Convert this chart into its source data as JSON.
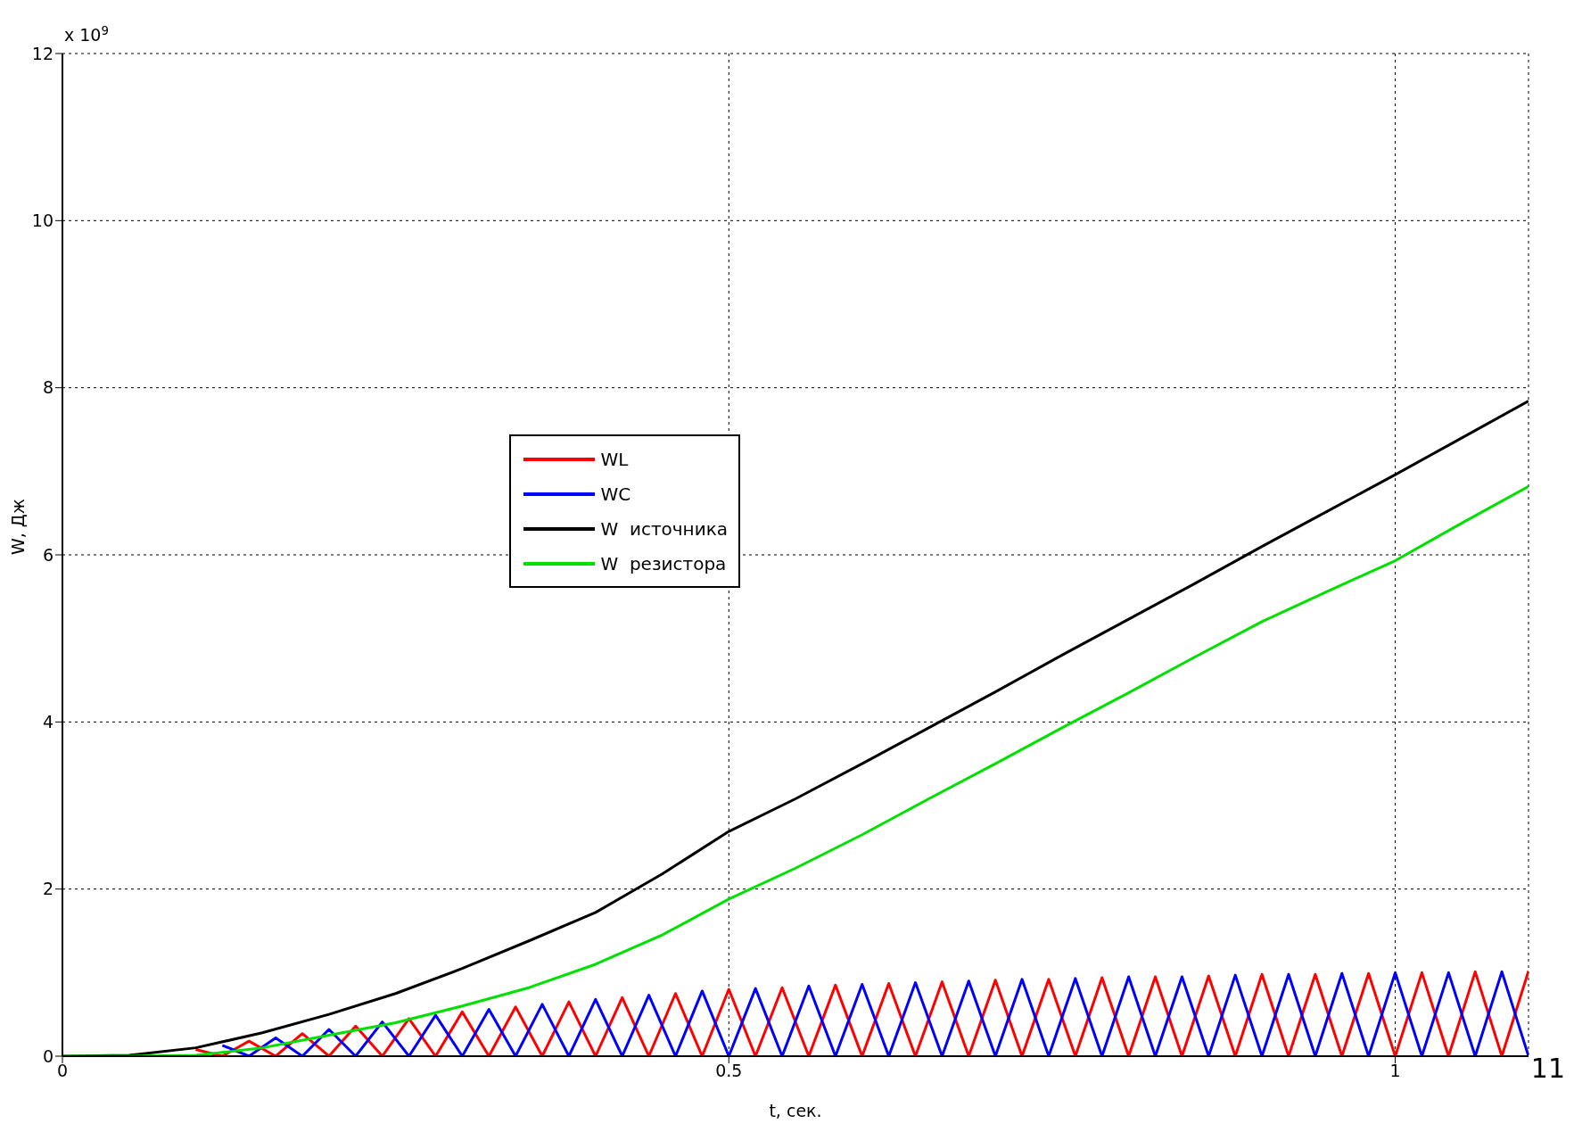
{
  "chart_data": {
    "type": "line",
    "xlabel": "t, сек.",
    "ylabel": "W, Дж",
    "annotations": [
      "x 10$^{9}$",
      "11"
    ],
    "xlim": [
      0,
      1.1
    ],
    "xticks": [
      0,
      0.5,
      1
    ],
    "ylim": [
      0,
      12
    ],
    "yticks": [
      0,
      2,
      4,
      6,
      8,
      10,
      12
    ],
    "grid": true,
    "legend": "left",
    "line_style": "solid",
    "marker": "none",
    "series": [
      {
        "name": "WL",
        "color": "#ff0000",
        "x": [
          0.1,
          0.12,
          0.14,
          0.16,
          0.18,
          0.2,
          0.22,
          0.24,
          0.26,
          0.28,
          0.3,
          0.32,
          0.34,
          0.36,
          0.38,
          0.4,
          0.42,
          0.44,
          0.46,
          0.48,
          0.5,
          0.52,
          0.54,
          0.56,
          0.58,
          0.6,
          0.62,
          0.64,
          0.66,
          0.68,
          0.7,
          0.72,
          0.74,
          0.76,
          0.78,
          0.8,
          0.82,
          0.84,
          0.86,
          0.88,
          0.9,
          0.92,
          0.94,
          0.96,
          0.98,
          1.0,
          1.02,
          1.04,
          1.06,
          1.08,
          1.1
        ],
        "values": [
          0.08,
          0,
          0.18,
          0,
          0.27,
          0,
          0.36,
          0,
          0.45,
          0,
          0.53,
          0,
          0.59,
          0,
          0.65,
          0,
          0.7,
          0,
          0.75,
          0,
          0.8,
          0,
          0.82,
          0,
          0.85,
          0,
          0.87,
          0,
          0.89,
          0,
          0.91,
          0,
          0.92,
          0,
          0.94,
          0,
          0.95,
          0,
          0.96,
          0,
          0.98,
          0,
          0.98,
          0,
          0.99,
          0,
          1.0,
          0,
          1.01,
          0,
          1.02
        ]
      },
      {
        "name": "WC",
        "color": "#0000ff",
        "x": [
          0.12,
          0.14,
          0.16,
          0.18,
          0.2,
          0.22,
          0.24,
          0.26,
          0.28,
          0.3,
          0.32,
          0.34,
          0.36,
          0.38,
          0.4,
          0.42,
          0.44,
          0.46,
          0.48,
          0.5,
          0.52,
          0.54,
          0.56,
          0.58,
          0.6,
          0.62,
          0.64,
          0.66,
          0.68,
          0.7,
          0.72,
          0.74,
          0.76,
          0.78,
          0.8,
          0.82,
          0.84,
          0.86,
          0.88,
          0.9,
          0.92,
          0.94,
          0.96,
          0.98,
          1.0,
          1.02,
          1.04,
          1.06,
          1.08,
          1.1
        ],
        "values": [
          0.13,
          0,
          0.22,
          0,
          0.32,
          0,
          0.41,
          0,
          0.49,
          0,
          0.56,
          0,
          0.62,
          0,
          0.68,
          0,
          0.73,
          0,
          0.78,
          0,
          0.81,
          0,
          0.84,
          0,
          0.86,
          0,
          0.88,
          0,
          0.9,
          0,
          0.92,
          0,
          0.93,
          0,
          0.95,
          0,
          0.95,
          0,
          0.97,
          0,
          0.98,
          0,
          0.99,
          0,
          1.0,
          0,
          1.0,
          0,
          1.01,
          0
        ]
      },
      {
        "name": "W  источника",
        "color": "#000000",
        "x": [
          0,
          0.05,
          0.1,
          0.15,
          0.2,
          0.25,
          0.3,
          0.35,
          0.4,
          0.45,
          0.5,
          0.55,
          0.6,
          0.65,
          0.7,
          0.75,
          0.8,
          0.85,
          0.9,
          0.95,
          1.0,
          1.05,
          1.1
        ],
        "values": [
          0,
          0.01,
          0.1,
          0.28,
          0.5,
          0.75,
          1.05,
          1.38,
          1.72,
          2.18,
          2.69,
          3.08,
          3.5,
          3.93,
          4.36,
          4.8,
          5.23,
          5.66,
          6.1,
          6.53,
          6.96,
          7.4,
          7.84
        ]
      },
      {
        "name": "W  резистора",
        "color": "#00e000",
        "x": [
          0,
          0.05,
          0.1,
          0.15,
          0.2,
          0.25,
          0.3,
          0.35,
          0.4,
          0.45,
          0.5,
          0.55,
          0.6,
          0.65,
          0.7,
          0.75,
          0.8,
          0.85,
          0.9,
          0.95,
          1.0,
          1.05,
          1.1
        ],
        "values": [
          0,
          0,
          0.01,
          0.1,
          0.25,
          0.4,
          0.6,
          0.82,
          1.1,
          1.45,
          1.88,
          2.25,
          2.65,
          3.08,
          3.5,
          3.93,
          4.35,
          4.78,
          5.2,
          5.57,
          5.93,
          6.38,
          6.82
        ]
      }
    ]
  }
}
